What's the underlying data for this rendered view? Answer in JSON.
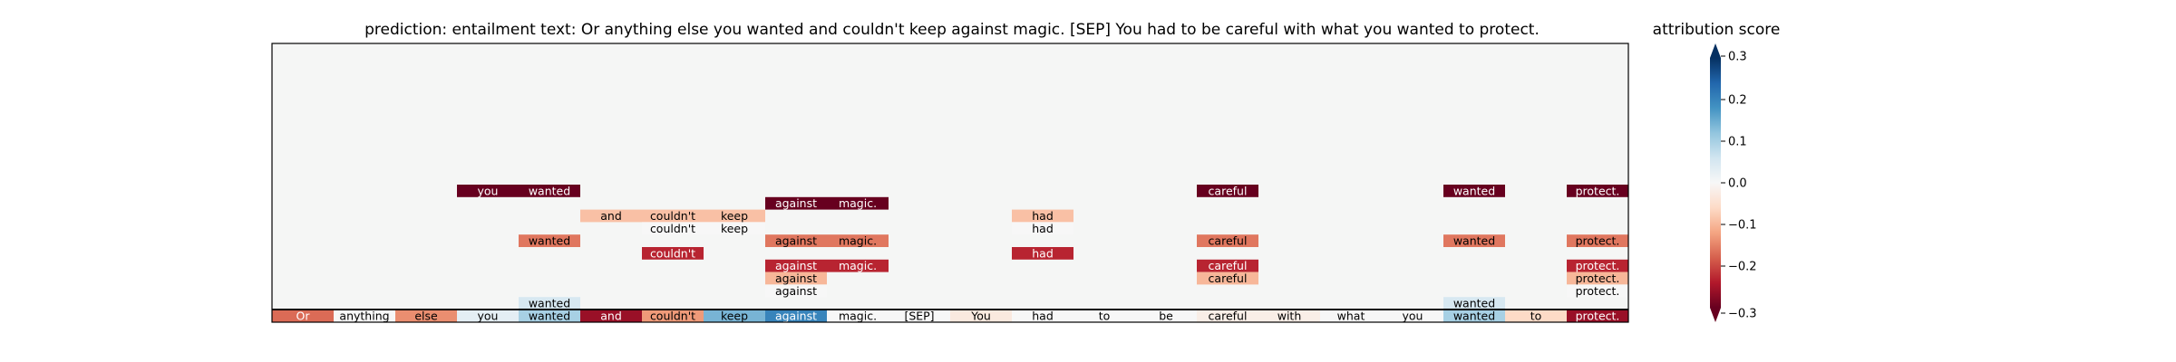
{
  "chart_data": {
    "type": "heatmap",
    "title": "prediction:  entailment     text:  Or anything else you wanted and couldn't keep against magic. [SEP] You had to be careful with what you wanted to protect.",
    "colorbar_label": "attribution score",
    "colorbar_range": [
      -0.3,
      0.3
    ],
    "colorbar_ticks": [
      "0.3",
      "0.2",
      "0.1",
      "0.0",
      "−0.1",
      "−0.2",
      "−0.3"
    ],
    "colorbar_tick_values": [
      0.3,
      0.2,
      0.1,
      0.0,
      -0.1,
      -0.2,
      -0.3
    ],
    "tokens": [
      "Or",
      "anything",
      "else",
      "you",
      "wanted",
      "and",
      "couldn't",
      "keep",
      "against",
      "magic.",
      "[SEP]",
      "You",
      "had",
      "to",
      "be",
      "careful",
      "with",
      "what",
      "you",
      "wanted",
      "to",
      "protect."
    ],
    "base_scores": [
      -0.17,
      0.0,
      -0.14,
      0.03,
      0.1,
      -0.26,
      -0.13,
      0.14,
      0.2,
      0.0,
      0.0,
      -0.03,
      0.0,
      0.0,
      0.0,
      -0.02,
      -0.02,
      0.0,
      0.0,
      0.1,
      -0.06,
      -0.26
    ],
    "layers": [
      {
        "tokens": [
          "you",
          "wanted",
          "careful",
          "wanted",
          "protect."
        ],
        "positions": [
          3,
          4,
          15,
          19,
          21
        ],
        "scores": [
          -0.32,
          -0.32,
          -0.32,
          -0.32,
          -0.32
        ]
      },
      {
        "tokens": [
          "against",
          "magic."
        ],
        "positions": [
          8,
          9
        ],
        "scores": [
          -0.32,
          -0.32
        ]
      },
      {
        "tokens": [
          "and",
          "couldn't",
          "keep",
          "had"
        ],
        "positions": [
          5,
          6,
          7,
          12
        ],
        "scores": [
          -0.09,
          -0.09,
          -0.09,
          -0.09
        ]
      },
      {
        "tokens": [
          "couldn't",
          "keep",
          "had"
        ],
        "positions": [
          6,
          7,
          12
        ],
        "scores": [
          0.0,
          0.0,
          0.0
        ]
      },
      {
        "tokens": [
          "wanted",
          "against",
          "magic.",
          "careful",
          "wanted",
          "protect."
        ],
        "positions": [
          4,
          8,
          9,
          15,
          19,
          21
        ],
        "scores": [
          -0.16,
          -0.16,
          -0.16,
          -0.16,
          -0.16,
          -0.16
        ]
      },
      {
        "tokens": [
          "couldn't",
          "had"
        ],
        "positions": [
          6,
          12
        ],
        "scores": [
          -0.23,
          -0.23
        ]
      },
      {
        "tokens": [
          "against",
          "magic.",
          "careful",
          "protect."
        ],
        "positions": [
          8,
          9,
          15,
          21
        ],
        "scores": [
          -0.23,
          -0.23,
          -0.23,
          -0.23
        ]
      },
      {
        "tokens": [
          "against",
          "careful",
          "protect."
        ],
        "positions": [
          8,
          15,
          21
        ],
        "scores": [
          -0.1,
          -0.1,
          -0.1
        ]
      },
      {
        "tokens": [
          "against",
          "protect."
        ],
        "positions": [
          8,
          21
        ],
        "scores": [
          0.0,
          0.0
        ]
      },
      {
        "tokens": [
          "wanted",
          "wanted"
        ],
        "positions": [
          4,
          19
        ],
        "scores": [
          0.05,
          0.05
        ]
      }
    ]
  }
}
